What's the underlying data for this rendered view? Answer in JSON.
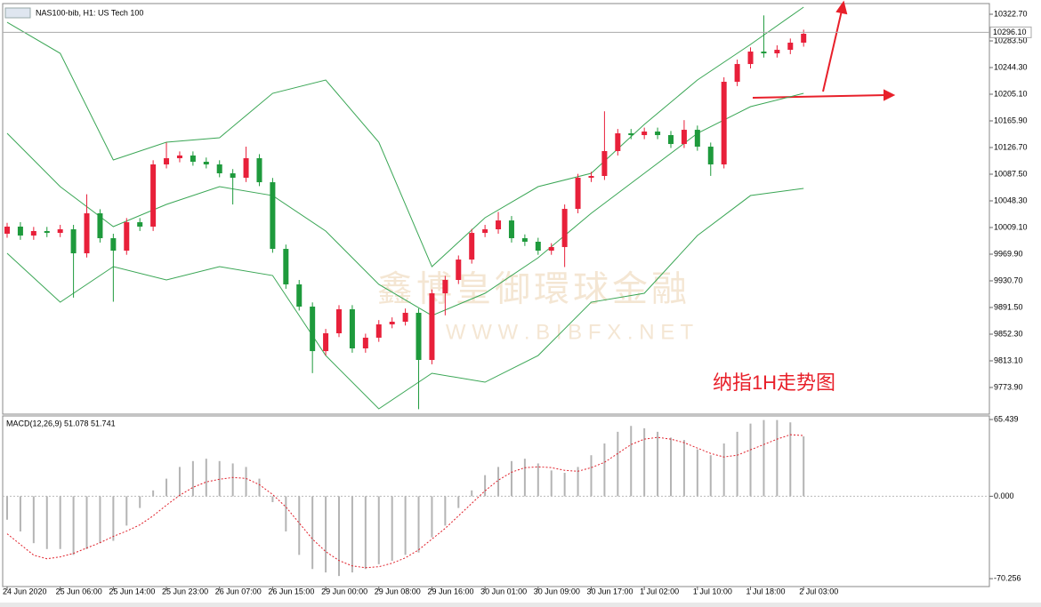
{
  "chart_data": [
    {
      "type": "candlestick",
      "title": "NAS100-bib, H1: US Tech 100",
      "annotation": "纳指1H走势图",
      "watermark_text": "鑫博皇御環球金融",
      "watermark_url": "W W W . B I B F X . N E T",
      "categories": [
        "24 Jun 2020",
        null,
        null,
        null,
        "25 Jun 06:00",
        null,
        null,
        null,
        "25 Jun 14:00",
        null,
        null,
        null,
        "25 Jun 23:00",
        null,
        null,
        null,
        "26 Jun 07:00",
        null,
        null,
        null,
        "26 Jun 15:00",
        null,
        null,
        null,
        "29 Jun 00:00",
        null,
        null,
        null,
        "29 Jun 08:00",
        null,
        null,
        null,
        "29 Jun 16:00",
        null,
        null,
        null,
        "30 Jun 01:00",
        null,
        null,
        null,
        "30 Jun 09:00",
        null,
        null,
        null,
        "30 Jun 17:00",
        null,
        null,
        null,
        "1 Jul 02:00",
        null,
        null,
        null,
        "1 Jul 10:00",
        null,
        null,
        null,
        "1 Jul 18:00",
        null,
        null,
        null,
        "2 Jul 03:00"
      ],
      "open": [
        10000.0,
        10010.4,
        9997.3,
        10003.9,
        10001.2,
        10006.5,
        9971.2,
        10030.0,
        9993.4,
        9975.1,
        10016.9,
        10010.4,
        10101.9,
        10111.0,
        10115.0,
        10105.8,
        10101.9,
        10088.8,
        10082.3,
        10111.0,
        10075.7,
        9977.7,
        9925.5,
        9892.8,
        9827.4,
        9853.6,
        9888.9,
        9831.4,
        9847.1,
        9866.7,
        9870.6,
        9883.7,
        9814.4,
        9912.4,
        9932.0,
        9962.0,
        10001.2,
        10006.5,
        10019.5,
        9993.4,
        9988.2,
        9975.1,
        9980.4,
        10036.5,
        10082.3,
        10084.9,
        10121.5,
        10147.6,
        10145.0,
        10150.2,
        10145.0,
        10131.9,
        10152.8,
        10128.0,
        10101.9,
        10223.4,
        10249.5,
        10267.8,
        10265.2,
        10270.4,
        10280.9
      ],
      "high": [
        10016,
        10017,
        10010,
        10010,
        10013,
        10013,
        10058,
        10036,
        10000,
        10023,
        10023,
        10108,
        10134,
        10121,
        10121,
        10112,
        10108,
        10095,
        10128,
        10117,
        10082,
        9984,
        9932,
        9899,
        9860,
        9895,
        9895,
        9853,
        9873,
        9877,
        9890,
        9890,
        9918,
        9938,
        9968,
        10007,
        10013,
        10032,
        10026,
        9999,
        9994,
        9986,
        10043,
        10088,
        10091,
        10180,
        10154,
        10154,
        10156,
        10156,
        10151,
        10167,
        10159,
        10134,
        10230,
        10256,
        10274,
        10321,
        10277,
        10287,
        10300
      ],
      "low": [
        9994,
        9991,
        9991,
        9995,
        9995,
        9906,
        9965,
        9987,
        9900,
        9969,
        10004,
        10004,
        10096,
        10105,
        10100,
        10096,
        10083,
        10043,
        10076,
        10070,
        9972,
        9919,
        9887,
        9795,
        9821,
        9848,
        9825,
        9825,
        9841,
        9861,
        9865,
        9742,
        9808,
        9880,
        9926,
        9956,
        9995,
        10000,
        9987,
        9982,
        9969,
        9969,
        9951,
        10030,
        10076,
        10079,
        10115,
        10139,
        10139,
        10139,
        10126,
        10126,
        10122,
        10085,
        10096,
        10217,
        10243,
        10259,
        10259,
        10264,
        10275
      ],
      "close": [
        10010.4,
        9997.3,
        10003.9,
        10001.2,
        10006.5,
        9971.2,
        10030.0,
        9993.4,
        9975.1,
        10016.9,
        10010.4,
        10101.9,
        10111.0,
        10115.0,
        10105.8,
        10101.9,
        10088.8,
        10082.3,
        10111.0,
        10075.7,
        9977.7,
        9925.5,
        9892.8,
        9827.4,
        9853.6,
        9888.9,
        9831.4,
        9847.1,
        9866.7,
        9870.6,
        9883.7,
        9814.4,
        9912.4,
        9932.0,
        9962.0,
        10001.2,
        10006.5,
        10019.5,
        9993.4,
        9988.2,
        9975.1,
        9980.4,
        10036.5,
        10082.3,
        10084.9,
        10121.5,
        10147.6,
        10145.0,
        10150.2,
        10145.0,
        10131.9,
        10152.8,
        10128.0,
        10101.9,
        10223.4,
        10249.5,
        10267.8,
        10265.2,
        10270.4,
        10280.9,
        10294.0
      ],
      "up_color": "#e8203a",
      "down_color": "#1e9a3c",
      "bands": {
        "x": [
          0,
          4,
          8,
          12,
          16,
          20,
          24,
          28,
          32,
          36,
          40,
          44,
          48,
          52,
          56,
          60
        ],
        "color": "#3aa655",
        "upper": [
          10310.9,
          10265.2,
          10108.4,
          10134.5,
          10141.1,
          10206.4,
          10226.0,
          10134.5,
          9951.6,
          10023.5,
          10069.2,
          10088.8,
          10160.7,
          10226.0,
          10278.3,
          10333.2
        ],
        "middle": [
          10147.6,
          10069.2,
          10010.4,
          10043.1,
          10069.2,
          10056.1,
          10003.9,
          9925.5,
          9879.7,
          9912.4,
          9964.7,
          10030.0,
          10088.8,
          10147.6,
          10186.8,
          10206.4
        ],
        "lower": [
          9971.2,
          9899.3,
          9951.6,
          9932.0,
          9951.6,
          9938.5,
          9820.9,
          9742.5,
          9794.8,
          9781.7,
          9820.9,
          9899.3,
          9912.4,
          9997.3,
          10056.1,
          10066.6
        ]
      },
      "last_price": {
        "value": 10296.1,
        "label": "10296.10"
      },
      "ylim": [
        9736.0,
        10337.1
      ],
      "yticks": [
        {
          "value": 10322.7,
          "label": "10322.70"
        },
        {
          "value": 10283.5,
          "label": "10283.50"
        },
        {
          "value": 10244.3,
          "label": "10244.30"
        },
        {
          "value": 10205.1,
          "label": "10205.10"
        },
        {
          "value": 10165.9,
          "label": "10165.90"
        },
        {
          "value": 10126.7,
          "label": "10126.70"
        },
        {
          "value": 10087.5,
          "label": "10087.50"
        },
        {
          "value": 10048.3,
          "label": "10048.30"
        },
        {
          "value": 10009.1,
          "label": "10009.10"
        },
        {
          "value": 9969.9,
          "label": "9969.90"
        },
        {
          "value": 9930.7,
          "label": "9930.70"
        },
        {
          "value": 9891.5,
          "label": "9891.50"
        },
        {
          "value": 9852.3,
          "label": "9852.30"
        },
        {
          "value": 9813.1,
          "label": "9813.10"
        },
        {
          "value": 9773.9,
          "label": "9773.90"
        }
      ]
    },
    {
      "type": "macd",
      "title": "MACD(12,26,9) 51.078 51.741",
      "histogram": [
        -20,
        -30,
        -40,
        -45,
        -45,
        -50,
        -45,
        -40,
        -38,
        -25,
        -10,
        5,
        15,
        25,
        30,
        32,
        30,
        28,
        25,
        15,
        -5,
        -30,
        -50,
        -62,
        -65,
        -68,
        -65,
        -62,
        -58,
        -55,
        -50,
        -48,
        -35,
        -25,
        -10,
        5,
        18,
        25,
        30,
        32,
        28,
        22,
        20,
        25,
        35,
        45,
        55,
        60,
        58,
        55,
        50,
        48,
        40,
        35,
        45,
        55,
        62,
        65,
        65,
        63,
        51.078
      ],
      "signal": [
        -32.0,
        -41.1,
        -50.2,
        -53.3,
        -51.7,
        -48.7,
        -44.1,
        -39.6,
        -34.2,
        -29.7,
        -24.4,
        -16.7,
        -7.6,
        0.8,
        7.6,
        12.2,
        14.5,
        16.0,
        15.2,
        9.9,
        1.5,
        -9.1,
        -22.8,
        -36.5,
        -47.2,
        -54.8,
        -59.4,
        -60.9,
        -60.1,
        -57.1,
        -52.5,
        -45.7,
        -36.5,
        -27.4,
        -16.7,
        -6.1,
        4.6,
        13.7,
        20.5,
        24.4,
        25.1,
        24.4,
        22.1,
        21.3,
        24.4,
        28.9,
        36.5,
        44.1,
        48.7,
        50.2,
        48.7,
        45.7,
        41.1,
        36.5,
        33.5,
        35.0,
        39.6,
        44.1,
        48.7,
        52.5,
        51.741
      ],
      "histogram_color": "#b4b4b4",
      "signal_color": "#e0202a",
      "ylim": [
        -77.0,
        68.5
      ],
      "yticks": [
        {
          "value": 65.439,
          "label": "65.439"
        },
        {
          "value": 0,
          "label": "0.000"
        },
        {
          "value": -70.256,
          "label": "-70.256"
        }
      ]
    }
  ]
}
